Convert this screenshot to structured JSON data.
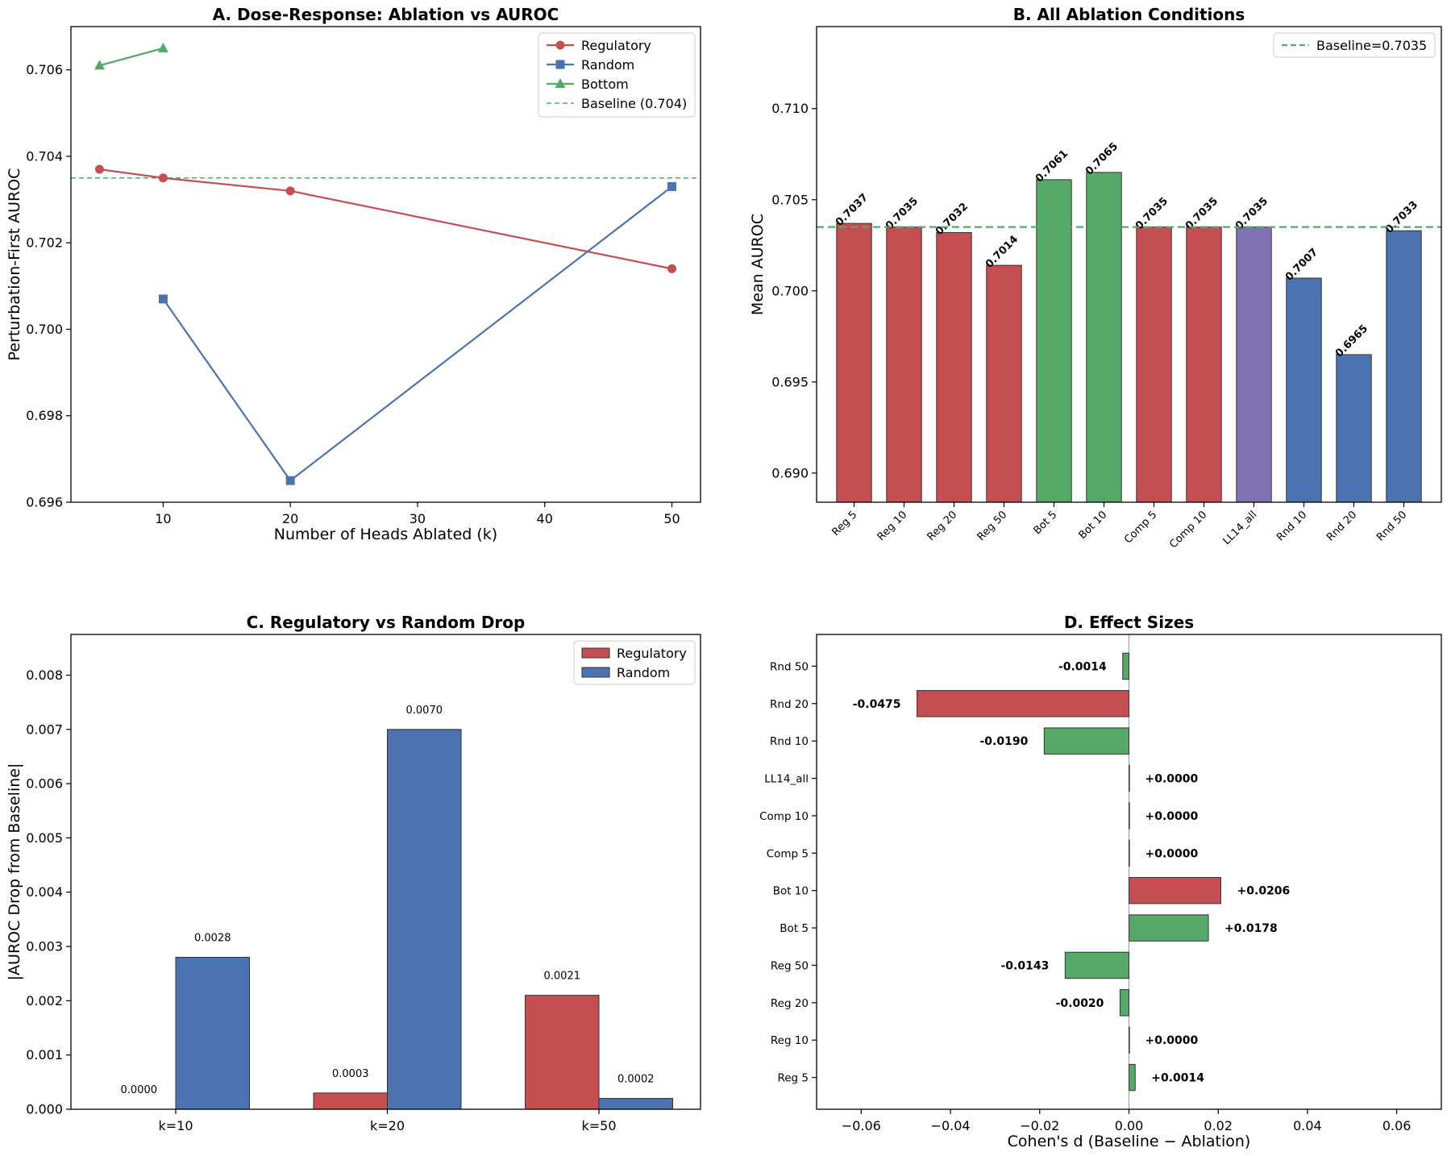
{
  "chart_data": [
    {
      "id": "A",
      "type": "line",
      "title": "A. Dose-Response: Ablation vs AUROC",
      "xlabel": "Number of Heads Ablated (k)",
      "ylabel": "Perturbation-First AUROC",
      "xlim": [
        2.75,
        52.25
      ],
      "ylim": [
        0.696,
        0.707
      ],
      "xticks": [
        10,
        20,
        30,
        40,
        50
      ],
      "yticks": [
        0.696,
        0.698,
        0.7,
        0.702,
        0.704,
        0.706
      ],
      "ytick_labels": [
        "0.696",
        "0.698",
        "0.700",
        "0.702",
        "0.704",
        "0.706"
      ],
      "series": [
        {
          "name": "Regulatory",
          "color": "#c44e52",
          "marker": "circle",
          "x": [
            5,
            10,
            20,
            50
          ],
          "y": [
            0.7037,
            0.7035,
            0.7032,
            0.7014
          ]
        },
        {
          "name": "Random",
          "color": "#4c72b0",
          "marker": "square",
          "x": [
            10,
            20,
            50
          ],
          "y": [
            0.7007,
            0.6965,
            0.7033
          ]
        },
        {
          "name": "Bottom",
          "color": "#55a868",
          "marker": "triangle",
          "x": [
            5,
            10
          ],
          "y": [
            0.7061,
            0.7065
          ]
        }
      ],
      "baseline": {
        "name": "Baseline (0.704)",
        "value": 0.7035,
        "color": "#55a868"
      },
      "legend": "top-right"
    },
    {
      "id": "B",
      "type": "bar",
      "title": "B. All Ablation Conditions",
      "ylabel": "Mean AUROC",
      "ylim": [
        0.6884,
        0.7145
      ],
      "yticks": [
        0.69,
        0.695,
        0.7,
        0.705,
        0.71
      ],
      "ytick_labels": [
        "0.690",
        "0.695",
        "0.700",
        "0.705",
        "0.710"
      ],
      "categories": [
        "Reg 5",
        "Reg 10",
        "Reg 20",
        "Reg 50",
        "Bot 5",
        "Bot 10",
        "Comp 5",
        "Comp 10",
        "LL14_all",
        "Rnd 10",
        "Rnd 20",
        "Rnd 50"
      ],
      "values": [
        0.7037,
        0.7035,
        0.7032,
        0.7014,
        0.7061,
        0.7065,
        0.7035,
        0.7035,
        0.7035,
        0.7007,
        0.6965,
        0.7033
      ],
      "value_labels": [
        "0.7037",
        "0.7035",
        "0.7032",
        "0.7014",
        "0.7061",
        "0.7065",
        "0.7035",
        "0.7035",
        "0.7035",
        "0.7007",
        "0.6965",
        "0.7033"
      ],
      "colors": [
        "#c44e52",
        "#c44e52",
        "#c44e52",
        "#c44e52",
        "#55a868",
        "#55a868",
        "#c44e52",
        "#c44e52",
        "#8172b3",
        "#4c72b0",
        "#4c72b0",
        "#4c72b0"
      ],
      "baseline": {
        "name": "Baseline=0.7035",
        "value": 0.7035,
        "color": "#55a868"
      },
      "legend": "top-right"
    },
    {
      "id": "C",
      "type": "bar",
      "title": "C. Regulatory vs Random Drop",
      "ylabel": "|AUROC Drop from Baseline|",
      "ylim": [
        0,
        0.00875
      ],
      "yticks": [
        0,
        0.001,
        0.002,
        0.003,
        0.004,
        0.005,
        0.006,
        0.007,
        0.008
      ],
      "ytick_labels": [
        "0.000",
        "0.001",
        "0.002",
        "0.003",
        "0.004",
        "0.005",
        "0.006",
        "0.007",
        "0.008"
      ],
      "categories": [
        "k=10",
        "k=20",
        "k=50"
      ],
      "series": [
        {
          "name": "Regulatory",
          "color": "#c44e52",
          "values": [
            0.0,
            0.0003,
            0.0021
          ],
          "labels": [
            "0.0000",
            "0.0003",
            "0.0021"
          ]
        },
        {
          "name": "Random",
          "color": "#4c72b0",
          "values": [
            0.0028,
            0.007,
            0.0002
          ],
          "labels": [
            "0.0028",
            "0.0070",
            "0.0002"
          ]
        }
      ],
      "legend": "top-right"
    },
    {
      "id": "D",
      "type": "bar",
      "orientation": "horizontal",
      "title": "D. Effect Sizes",
      "xlabel": "Cohen's d (Baseline − Ablation)",
      "xlim": [
        -0.07,
        0.07
      ],
      "xticks": [
        -0.06,
        -0.04,
        -0.02,
        0.0,
        0.02,
        0.04,
        0.06
      ],
      "xtick_labels": [
        "−0.06",
        "−0.04",
        "−0.02",
        "0.00",
        "0.02",
        "0.04",
        "0.06"
      ],
      "categories": [
        "Reg 5",
        "Reg 10",
        "Reg 20",
        "Reg 50",
        "Bot 5",
        "Bot 10",
        "Comp 5",
        "Comp 10",
        "LL14_all",
        "Rnd 10",
        "Rnd 20",
        "Rnd 50"
      ],
      "values": [
        0.0014,
        0.0,
        -0.002,
        -0.0143,
        0.0178,
        0.0206,
        0.0,
        0.0,
        0.0,
        -0.019,
        -0.0475,
        -0.0014
      ],
      "value_labels": [
        "+0.0014",
        "+0.0000",
        "-0.0020",
        "-0.0143",
        "+0.0178",
        "+0.0206",
        "+0.0000",
        "+0.0000",
        "+0.0000",
        "-0.0190",
        "-0.0475",
        "-0.0014"
      ],
      "colors": [
        "#55a868",
        "#55a868",
        "#55a868",
        "#55a868",
        "#55a868",
        "#c44e52",
        "#55a868",
        "#55a868",
        "#55a868",
        "#55a868",
        "#c44e52",
        "#55a868"
      ]
    }
  ]
}
